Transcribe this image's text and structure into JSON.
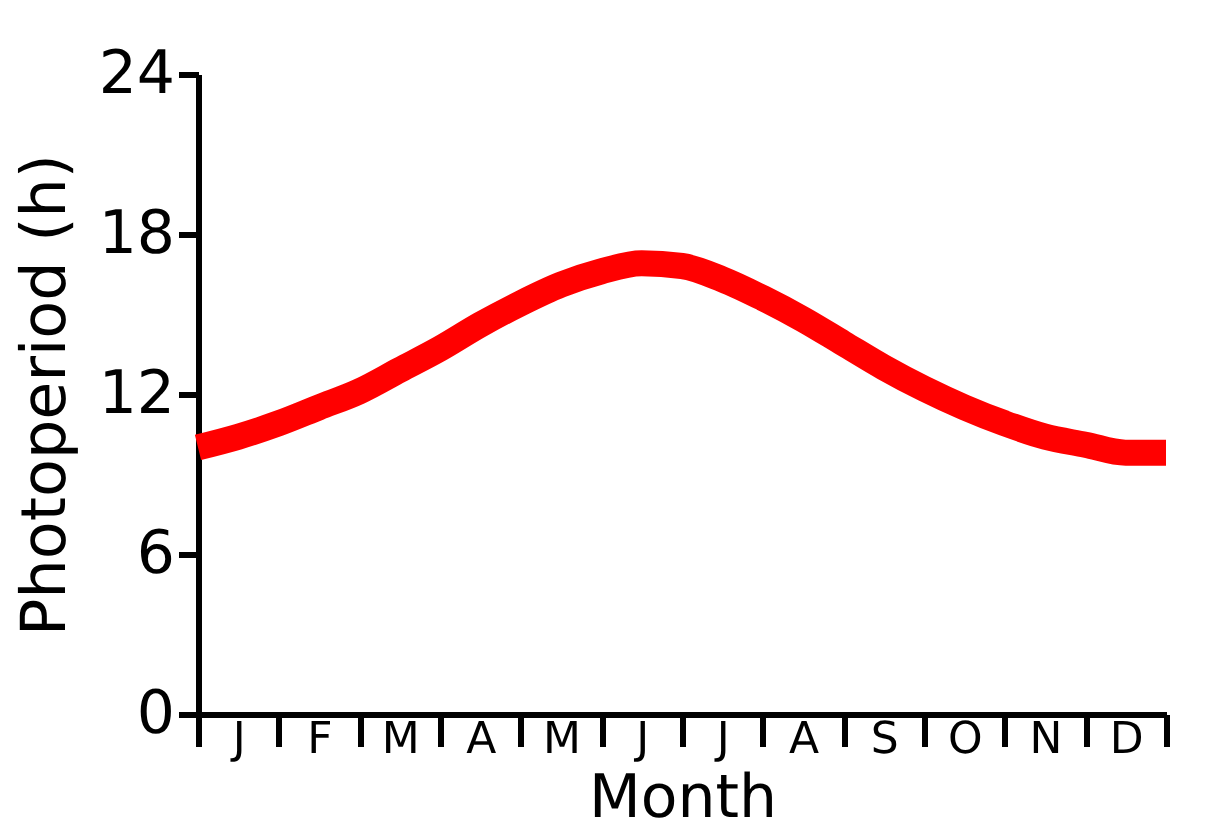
{
  "chart_data": {
    "type": "line",
    "xlabel": "Month",
    "ylabel": "Photoperiod (h)",
    "categories": [
      null,
      "J",
      null,
      "F",
      null,
      "M",
      null,
      "A",
      null,
      "M",
      null,
      "J",
      null,
      "J",
      null,
      "A",
      null,
      "S",
      null,
      "O",
      null,
      "N",
      null,
      "D",
      null
    ],
    "series": [
      {
        "color": "#ff0000",
        "values": [
          10.0,
          10.4,
          10.9,
          11.5,
          12.1,
          12.9,
          13.7,
          14.6,
          15.4,
          16.1,
          16.6,
          16.9,
          16.8,
          16.3,
          15.6,
          14.8,
          13.9,
          13.0,
          12.2,
          11.5,
          10.9,
          10.4,
          10.1,
          9.8,
          9.8
        ]
      }
    ],
    "ylim": [
      0,
      24
    ],
    "yticks": [
      0,
      6,
      12,
      18,
      24
    ],
    "grid": false,
    "marker": "none",
    "line_style": "solid"
  }
}
